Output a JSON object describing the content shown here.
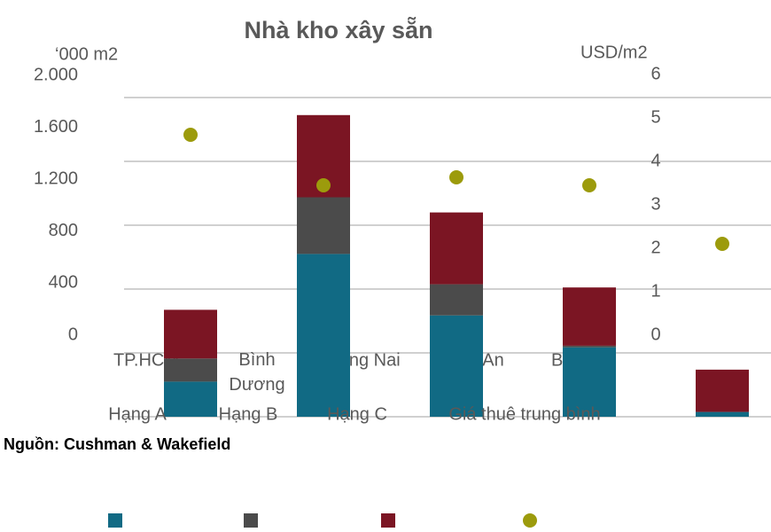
{
  "chart_data": {
    "type": "stacked-bar-dot",
    "title": "Nhà kho xây sẵn",
    "y_label": "‘000 m2",
    "y2_label": "USD/m2",
    "source": "Nguồn: Cushman & Wakefield",
    "categories": [
      "TP.HCM",
      "Bình Dương",
      "Đồng Nai",
      "Long An",
      "BR-VT"
    ],
    "series": [
      {
        "name": "Hạng A",
        "color": "#116a84",
        "values": [
          220,
          1020,
          635,
          435,
          30
        ]
      },
      {
        "name": "Hạng B",
        "color": "#4b4b4b",
        "values": [
          145,
          355,
          195,
          10,
          0
        ]
      },
      {
        "name": "Hạng C",
        "color": "#7b1523",
        "values": [
          305,
          515,
          450,
          365,
          265
        ]
      },
      {
        "name": "Giá thuê trung bình",
        "color": "#9c9b0c",
        "axis": "y2",
        "values": [
          5.3,
          4.35,
          4.5,
          4.35,
          3.25
        ]
      }
    ],
    "ylim": [
      0,
      2000
    ],
    "yticks": [
      0,
      {
        "value": 400,
        "label": "400"
      },
      {
        "value": 800,
        "label": "800"
      },
      {
        "value": 1200,
        "label": "1.200"
      },
      {
        "value": 1600,
        "label": "1.600"
      },
      {
        "value": 2000,
        "label": "2.000"
      }
    ],
    "y2lim": [
      0,
      6
    ],
    "y2ticks": [
      0,
      1,
      2,
      3,
      4,
      5,
      6
    ],
    "grid": true
  }
}
